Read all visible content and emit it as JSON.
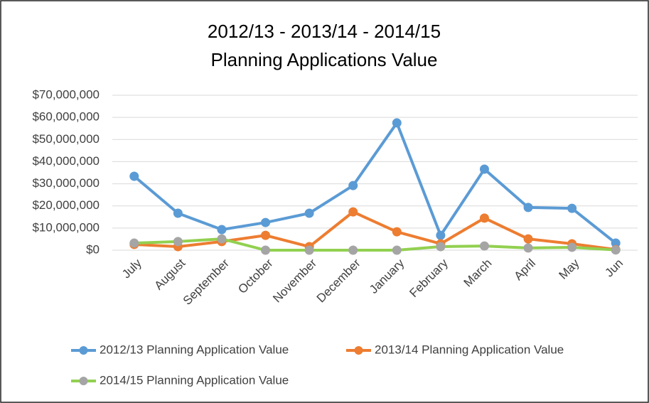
{
  "chart_data": {
    "type": "line",
    "title": "2012/13 - 2013/14 - 2014/15",
    "subtitle": "Planning Applications Value",
    "categories": [
      "July",
      "August",
      "September",
      "October",
      "November",
      "December",
      "January",
      "February",
      "March",
      "April",
      "May",
      "Jun"
    ],
    "series": [
      {
        "name": "2012/13 Planning Application Value",
        "color": "#5b9bd5",
        "marker_color": "#5b9bd5",
        "values": [
          33400000,
          16700000,
          9300000,
          12500000,
          16700000,
          29200000,
          57500000,
          6700000,
          36600000,
          19300000,
          18900000,
          3200000
        ]
      },
      {
        "name": "2013/14 Planning Application Value",
        "color": "#ed7d31",
        "marker_color": "#ed7d31",
        "values": [
          2600000,
          1600000,
          3900000,
          6700000,
          1600000,
          17300000,
          8300000,
          2900000,
          14500000,
          5100000,
          2900000,
          300000
        ]
      },
      {
        "name": "2014/15  Planning Application Value",
        "color": "#92d050",
        "marker_color": "#a5a5a5",
        "values": [
          3200000,
          3900000,
          5100000,
          0,
          0,
          0,
          0,
          1600000,
          1900000,
          1000000,
          1300000,
          100000
        ]
      }
    ],
    "ylim": [
      0,
      70000000
    ],
    "yticks": [
      {
        "value": 0,
        "label": "$0"
      },
      {
        "value": 10000000,
        "label": "$10,000,000"
      },
      {
        "value": 20000000,
        "label": "$20,000,000"
      },
      {
        "value": 30000000,
        "label": "$30,000,000"
      },
      {
        "value": 40000000,
        "label": "$40,000,000"
      },
      {
        "value": 50000000,
        "label": "$50,000,000"
      },
      {
        "value": 60000000,
        "label": "$60,000,000"
      },
      {
        "value": 70000000,
        "label": "$70,000,000"
      }
    ],
    "grid": true,
    "legend": "bottom"
  }
}
